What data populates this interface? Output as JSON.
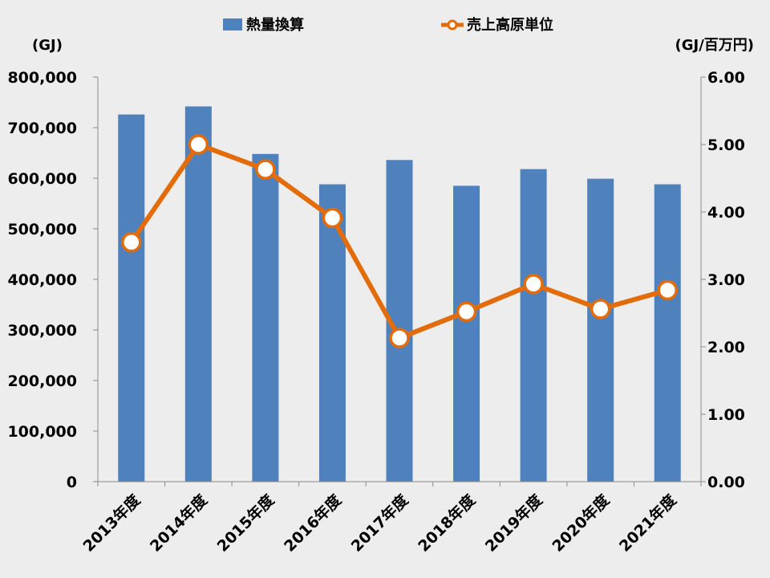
{
  "chart_data": {
    "type": "bar",
    "categories": [
      "2013年度",
      "2014年度",
      "2015年度",
      "2016年度",
      "2017年度",
      "2018年度",
      "2019年度",
      "2020年度",
      "2021年度"
    ],
    "series": [
      {
        "name": "熱量換算",
        "type": "bar",
        "axis": "left",
        "color": "#4f81bd",
        "values": [
          726000,
          742000,
          648000,
          588000,
          636000,
          585000,
          618000,
          599000,
          588000
        ]
      },
      {
        "name": "売上高原単位",
        "type": "line",
        "axis": "right",
        "color": "#e36c0a",
        "marker_fill": "#ffffff",
        "values": [
          3.55,
          5.0,
          4.63,
          3.91,
          2.13,
          2.52,
          2.93,
          2.56,
          2.84
        ]
      }
    ],
    "y_left": {
      "unit": "(GJ)",
      "ylim": [
        0,
        800000
      ],
      "ticks": [
        "0",
        "100,000",
        "200,000",
        "300,000",
        "400,000",
        "500,000",
        "600,000",
        "700,000",
        "800,000"
      ]
    },
    "y_right": {
      "unit": "(GJ/百万円)",
      "ylim": [
        0,
        6
      ],
      "ticks": [
        "0.00",
        "1.00",
        "2.00",
        "3.00",
        "4.00",
        "5.00",
        "6.00"
      ]
    },
    "grid": false,
    "legend_position": "top"
  }
}
